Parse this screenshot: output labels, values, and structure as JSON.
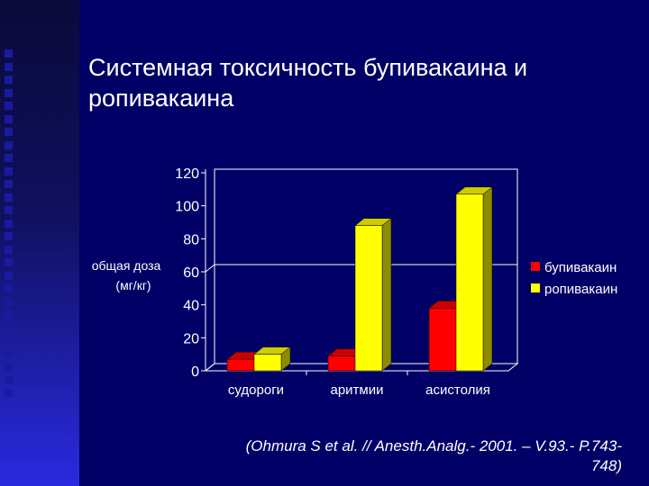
{
  "slide": {
    "title": "Системная токсичность бупивакаина и ропивакаина",
    "citation": "(Ohmura S et al. // Anesth.Analg.- 2001. – V.93.- P.743-748)"
  },
  "colors": {
    "background": "#000066",
    "bupivacaine": "#ff0000",
    "ropivacaine": "#ffff00",
    "text": "#ffffff"
  },
  "chart_data": {
    "type": "bar",
    "title": "",
    "xlabel": "",
    "ylabel": "общая доза (мг/кг)",
    "ylim": [
      0,
      120
    ],
    "yticks": [
      0,
      20,
      40,
      60,
      80,
      100,
      120
    ],
    "categories": [
      "судороги",
      "аритмии",
      "асистолия"
    ],
    "series": [
      {
        "name": "бупивакаин",
        "color": "#ff0000",
        "values": [
          7,
          9,
          38
        ]
      },
      {
        "name": "ропивакаин",
        "color": "#ffff00",
        "values": [
          10,
          88,
          107
        ]
      }
    ],
    "grid": false,
    "reference_line": 60,
    "legend": "right",
    "three_d": true
  }
}
